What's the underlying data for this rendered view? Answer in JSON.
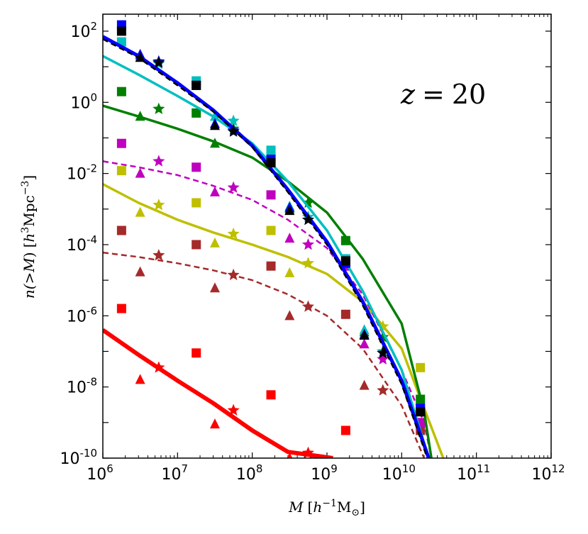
{
  "chart_data": {
    "type": "scatter",
    "title": "",
    "annotation": "z = 20",
    "annotation_parts": [
      "z",
      "=",
      "20"
    ],
    "xlabel_parts": [
      "M",
      "[",
      "h",
      "−1",
      "M",
      "⊙",
      "]"
    ],
    "ylabel_parts": [
      "n(>",
      "M",
      ")",
      "[",
      "h",
      "3",
      "Mpc",
      "−3",
      "]"
    ],
    "xscale": "log",
    "yscale": "log",
    "xlim": [
      1000000.0,
      1000000000000.0
    ],
    "ylim": [
      1e-10,
      300
    ],
    "x_ticks": [
      {
        "base": "10",
        "exp": "6",
        "value": 1000000.0
      },
      {
        "base": "10",
        "exp": "7",
        "value": 10000000.0
      },
      {
        "base": "10",
        "exp": "8",
        "value": 100000000.0
      },
      {
        "base": "10",
        "exp": "9",
        "value": 1000000000.0
      },
      {
        "base": "10",
        "exp": "10",
        "value": 10000000000.0
      },
      {
        "base": "10",
        "exp": "11",
        "value": 100000000000.0
      },
      {
        "base": "10",
        "exp": "12",
        "value": 1000000000000.0
      }
    ],
    "y_ticks": [
      {
        "base": "10",
        "exp": "-10",
        "value": 1e-10
      },
      {
        "base": "10",
        "exp": "-8",
        "value": 1e-08
      },
      {
        "base": "10",
        "exp": "-6",
        "value": 1e-06
      },
      {
        "base": "10",
        "exp": "-4",
        "value": 0.0001
      },
      {
        "base": "10",
        "exp": "-2",
        "value": 0.01
      },
      {
        "base": "10",
        "exp": "0",
        "value": 1
      },
      {
        "base": "10",
        "exp": "2",
        "value": 100
      }
    ],
    "series": [
      {
        "name": "red",
        "color": "#ff0000",
        "style": "solid",
        "width": 6,
        "curve": [
          [
            1000000.0,
            4e-07
          ],
          [
            3000000.0,
            8e-08
          ],
          [
            10000000.0,
            1.5e-08
          ],
          [
            30000000.0,
            3.5e-09
          ],
          [
            100000000.0,
            6e-10
          ],
          [
            300000000.0,
            1.5e-10
          ],
          [
            1200000000.0,
            1e-10
          ]
        ],
        "squares": [
          [
            1780000.0,
            1.6e-06
          ],
          [
            17800000.0,
            9e-08
          ],
          [
            178000000.0,
            6e-09
          ],
          [
            1780000000.0,
            6e-10
          ]
        ],
        "triangles": [
          [
            3160000.0,
            1.6e-08
          ],
          [
            31600000.0,
            9e-10
          ],
          [
            316000000.0,
            1e-10
          ]
        ],
        "stars": [
          [
            5600000.0,
            3.5e-08
          ],
          [
            56000000.0,
            2.2e-09
          ],
          [
            560000000.0,
            1.4e-10
          ]
        ]
      },
      {
        "name": "brown",
        "color": "#a52a2a",
        "style": "dashed",
        "width": 2.5,
        "curve": [
          [
            1000000.0,
            6e-05
          ],
          [
            3000000.0,
            4.5e-05
          ],
          [
            10000000.0,
            3e-05
          ],
          [
            30000000.0,
            1.9e-05
          ],
          [
            100000000.0,
            1e-05
          ],
          [
            300000000.0,
            4e-06
          ],
          [
            1000000000.0,
            1e-06
          ],
          [
            3000000000.0,
            1.2e-07
          ],
          [
            10000000000.0,
            3e-09
          ],
          [
            20000000000.0,
            1e-10
          ]
        ],
        "squares": [
          [
            1780000.0,
            0.00025
          ],
          [
            17800000.0,
            0.0001
          ],
          [
            178000000.0,
            2.5e-05
          ],
          [
            1780000000.0,
            1.1e-06
          ],
          [
            17800000000.0,
            6e-10
          ]
        ],
        "triangles": [
          [
            3160000.0,
            1.7e-05
          ],
          [
            31600000.0,
            6e-06
          ],
          [
            316000000.0,
            1e-06
          ],
          [
            3160000000.0,
            1.1e-08
          ]
        ],
        "stars": [
          [
            5600000.0,
            5e-05
          ],
          [
            56000000.0,
            1.4e-05
          ],
          [
            560000000.0,
            1.8e-06
          ],
          [
            5600000000.0,
            8e-09
          ]
        ]
      },
      {
        "name": "olive",
        "color": "#bfbf00",
        "style": "solid",
        "width": 3.5,
        "curve": [
          [
            1000000.0,
            0.005
          ],
          [
            3000000.0,
            0.0015
          ],
          [
            10000000.0,
            0.0005
          ],
          [
            30000000.0,
            0.00022
          ],
          [
            100000000.0,
            0.0001
          ],
          [
            300000000.0,
            4.5e-05
          ],
          [
            1000000000.0,
            1.5e-05
          ],
          [
            3000000000.0,
            2.5e-06
          ],
          [
            10000000000.0,
            1.2e-07
          ],
          [
            20000000000.0,
            2.5e-09
          ],
          [
            36000000000.0,
            1e-10
          ]
        ],
        "squares": [
          [
            1780000.0,
            0.012
          ],
          [
            17800000.0,
            0.0015
          ],
          [
            178000000.0,
            0.00025
          ],
          [
            1780000000.0,
            3.5e-05
          ],
          [
            17800000000.0,
            3.5e-08
          ]
        ],
        "triangles": [
          [
            3160000.0,
            0.0008
          ],
          [
            31600000.0,
            0.00011
          ],
          [
            316000000.0,
            1.6e-05
          ],
          [
            3160000000.0,
            3e-07
          ]
        ],
        "stars": [
          [
            5600000.0,
            0.0013
          ],
          [
            56000000.0,
            0.0002
          ],
          [
            560000000.0,
            3e-05
          ],
          [
            5600000000.0,
            5e-07
          ]
        ]
      },
      {
        "name": "magenta",
        "color": "#bf00bf",
        "style": "dashed",
        "width": 2.5,
        "curve": [
          [
            1000000.0,
            0.022
          ],
          [
            3000000.0,
            0.015
          ],
          [
            10000000.0,
            0.009
          ],
          [
            30000000.0,
            0.0045
          ],
          [
            100000000.0,
            0.0018
          ],
          [
            300000000.0,
            0.0005
          ],
          [
            1000000000.0,
            8e-05
          ],
          [
            3000000000.0,
            4e-06
          ],
          [
            10000000000.0,
            3e-08
          ],
          [
            20000000000.0,
            1e-09
          ],
          [
            25000000000.0,
            1e-10
          ]
        ],
        "squares": [
          [
            1780000.0,
            0.07
          ],
          [
            17800000.0,
            0.015
          ],
          [
            178000000.0,
            0.0025
          ],
          [
            1780000000.0,
            2.5e-05
          ],
          [
            17800000000.0,
            1e-09
          ]
        ],
        "triangles": [
          [
            3160000.0,
            0.01
          ],
          [
            31600000.0,
            0.003
          ],
          [
            316000000.0,
            0.00015
          ],
          [
            3160000000.0,
            1.6e-07
          ]
        ],
        "stars": [
          [
            5600000.0,
            0.022
          ],
          [
            56000000.0,
            0.004
          ],
          [
            560000000.0,
            0.0001
          ],
          [
            5600000000.0,
            6e-08
          ]
        ]
      },
      {
        "name": "green",
        "color": "#007f00",
        "style": "solid",
        "width": 3.5,
        "curve": [
          [
            1000000.0,
            0.8
          ],
          [
            3000000.0,
            0.4
          ],
          [
            10000000.0,
            0.18
          ],
          [
            30000000.0,
            0.08
          ],
          [
            100000000.0,
            0.028
          ],
          [
            300000000.0,
            0.006
          ],
          [
            1000000000.0,
            0.0008
          ],
          [
            3000000000.0,
            4e-05
          ],
          [
            10000000000.0,
            6e-07
          ],
          [
            20000000000.0,
            2e-09
          ],
          [
            25000000000.0,
            1e-10
          ]
        ],
        "squares": [
          [
            1780000.0,
            2
          ],
          [
            17800000.0,
            0.5
          ],
          [
            178000000.0,
            0.03
          ],
          [
            1780000000.0,
            0.00013
          ],
          [
            17800000000.0,
            4.5e-09
          ]
        ],
        "triangles": [
          [
            3160000.0,
            0.4
          ],
          [
            31600000.0,
            0.07
          ],
          [
            316000000.0,
            0.001
          ],
          [
            3160000000.0,
            3.5e-07
          ]
        ],
        "stars": [
          [
            5600000.0,
            0.65
          ],
          [
            56000000.0,
            0.18
          ],
          [
            560000000.0,
            0.0015
          ],
          [
            5600000000.0,
            2.5e-07
          ]
        ]
      },
      {
        "name": "cyan",
        "color": "#00bfbf",
        "style": "solid",
        "width": 3.5,
        "curve": [
          [
            1000000.0,
            20
          ],
          [
            3000000.0,
            6
          ],
          [
            10000000.0,
            1.5
          ],
          [
            30000000.0,
            0.4
          ],
          [
            100000000.0,
            0.07
          ],
          [
            300000000.0,
            0.006
          ],
          [
            1000000000.0,
            0.00025
          ],
          [
            3000000000.0,
            5e-06
          ],
          [
            10000000000.0,
            3e-08
          ],
          [
            23000000000.0,
            1e-10
          ]
        ],
        "squares": [
          [
            1780000.0,
            50
          ],
          [
            17800000.0,
            4
          ],
          [
            178000000.0,
            0.045
          ],
          [
            1780000000.0,
            4e-05
          ],
          [
            17800000000.0,
            2.5e-09
          ]
        ],
        "triangles": [
          [
            3160000.0,
            20
          ],
          [
            31600000.0,
            0.4
          ],
          [
            316000000.0,
            0.0012
          ],
          [
            3160000000.0,
            4e-07
          ]
        ],
        "stars": [
          [
            5600000.0,
            12
          ],
          [
            56000000.0,
            0.3
          ],
          [
            560000000.0,
            0.0006
          ],
          [
            5600000000.0,
            1e-07
          ]
        ]
      },
      {
        "name": "blue",
        "color": "#0000ff",
        "style": "solid",
        "width": 5,
        "curve": [
          [
            1000000.0,
            70
          ],
          [
            3000000.0,
            20
          ],
          [
            10000000.0,
            3.5
          ],
          [
            30000000.0,
            0.6
          ],
          [
            100000000.0,
            0.06
          ],
          [
            300000000.0,
            0.0035
          ],
          [
            1000000000.0,
            0.00012
          ],
          [
            3000000000.0,
            2.5e-06
          ],
          [
            10000000000.0,
            1.5e-08
          ],
          [
            23000000000.0,
            1e-10
          ]
        ],
        "squares": [
          [
            1780000.0,
            150
          ],
          [
            17800000.0,
            3
          ],
          [
            178000000.0,
            0.025
          ],
          [
            1780000000.0,
            3e-05
          ],
          [
            17800000000.0,
            2.5e-09
          ]
        ],
        "triangles": [
          [
            3160000.0,
            22
          ],
          [
            31600000.0,
            0.25
          ],
          [
            316000000.0,
            0.0011
          ],
          [
            3160000000.0,
            3e-07
          ]
        ],
        "stars": [
          [
            5600000.0,
            14
          ],
          [
            56000000.0,
            0.16
          ],
          [
            560000000.0,
            0.0005
          ],
          [
            5600000000.0,
            9e-08
          ]
        ]
      },
      {
        "name": "black",
        "color": "#000000",
        "style": "dashed",
        "width": 2.5,
        "curve": [
          [
            1000000.0,
            60
          ],
          [
            3000000.0,
            18
          ],
          [
            10000000.0,
            3
          ],
          [
            30000000.0,
            0.55
          ],
          [
            100000000.0,
            0.055
          ],
          [
            300000000.0,
            0.003
          ],
          [
            1000000000.0,
            0.0001
          ],
          [
            3000000000.0,
            2e-06
          ],
          [
            10000000000.0,
            1.2e-08
          ],
          [
            22000000000.0,
            1e-10
          ]
        ],
        "squares": [
          [
            1780000.0,
            100
          ],
          [
            17800000.0,
            3
          ],
          [
            178000000.0,
            0.02
          ],
          [
            1780000000.0,
            3.5e-05
          ],
          [
            17800000000.0,
            2e-09
          ]
        ],
        "triangles": [
          [
            3160000.0,
            18
          ],
          [
            31600000.0,
            0.22
          ],
          [
            316000000.0,
            0.0009
          ],
          [
            3160000000.0,
            2.8e-07
          ]
        ],
        "stars": [
          [
            5600000.0,
            13
          ],
          [
            56000000.0,
            0.15
          ],
          [
            560000000.0,
            0.0005
          ],
          [
            5600000000.0,
            9e-08
          ]
        ]
      }
    ]
  }
}
